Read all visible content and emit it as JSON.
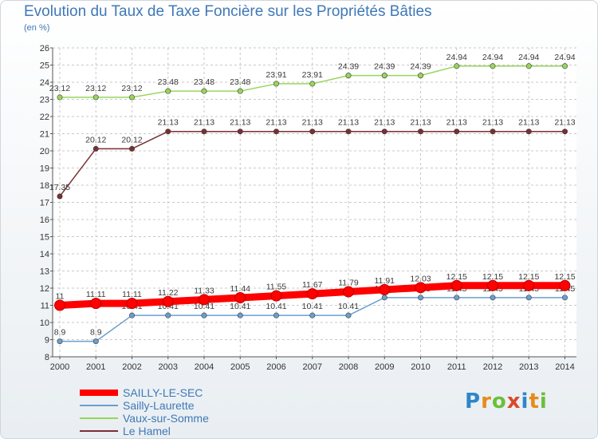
{
  "header": {
    "title": "Evolution du Taux de Taxe Foncière sur les Propriétés Bâties",
    "unit": "(en %)"
  },
  "chart_data": {
    "type": "line",
    "title": "Evolution du Taux de Taxe Foncière sur les Propriétés Bâties",
    "ylabel": "(en %)",
    "xlabel": "",
    "categories": [
      "2000",
      "2001",
      "2002",
      "2003",
      "2004",
      "2005",
      "2006",
      "2007",
      "2008",
      "2009",
      "2010",
      "2011",
      "2012",
      "2013",
      "2014"
    ],
    "ylim": [
      8,
      26
    ],
    "yticks": [
      8,
      9,
      10,
      11,
      12,
      13,
      14,
      15,
      16,
      17,
      18,
      19,
      20,
      21,
      22,
      23,
      24,
      25,
      26
    ],
    "grid": "horizontal-and-vertical-dashed",
    "series": [
      {
        "name": "SAILLY-LE-SEC",
        "color": "#ff0000",
        "style": "thick",
        "values": [
          11,
          11.11,
          11.11,
          11.22,
          11.33,
          11.44,
          11.55,
          11.67,
          11.79,
          11.91,
          12.03,
          12.15,
          12.15,
          12.15,
          12.15
        ],
        "labels": [
          "11",
          "11.11",
          "11.11",
          "11.22",
          "11.33",
          "11.44",
          "11.55",
          "11.67",
          "11.79",
          "11.91",
          "12.03",
          "12.15",
          "12.15",
          "12.15",
          "12.15"
        ]
      },
      {
        "name": "Sailly-Laurette",
        "color": "#6a9fd0",
        "style": "thin",
        "values": [
          8.9,
          8.9,
          10.41,
          10.41,
          10.41,
          10.41,
          10.41,
          10.41,
          10.41,
          11.45,
          11.45,
          11.45,
          11.45,
          11.45,
          11.45
        ],
        "labels": [
          "8.9",
          "8.9",
          "10.41",
          "10.41",
          "10.41",
          "10.41",
          "10.41",
          "10.41",
          "10.41",
          "11.45",
          "11.45",
          "11.45",
          "11.45",
          "11.45",
          "11.45"
        ]
      },
      {
        "name": "Vaux-sur-Somme",
        "color": "#97d65a",
        "style": "thin",
        "values": [
          23.12,
          23.12,
          23.12,
          23.48,
          23.48,
          23.48,
          23.91,
          23.91,
          24.39,
          24.39,
          24.39,
          24.94,
          24.94,
          24.94,
          24.94
        ],
        "labels": [
          "23.12",
          "23.12",
          "23.12",
          "23.48",
          "23.48",
          "23.48",
          "23.91",
          "23.91",
          "24.39",
          "24.39",
          "24.39",
          "24.94",
          "24.94",
          "24.94",
          "24.94"
        ]
      },
      {
        "name": "Le Hamel",
        "color": "#7a2f34",
        "style": "thin",
        "values": [
          17.35,
          20.12,
          20.12,
          21.13,
          21.13,
          21.13,
          21.13,
          21.13,
          21.13,
          21.13,
          21.13,
          21.13,
          21.13,
          21.13,
          21.13
        ],
        "labels": [
          "17.35",
          "20.12",
          "20.12",
          "21.13",
          "21.13",
          "21.13",
          "21.13",
          "21.13",
          "21.13",
          "21.13",
          "21.13",
          "21.13",
          "21.13",
          "21.13",
          "21.13"
        ]
      }
    ],
    "legend_position": "bottom-left"
  },
  "legend": {
    "items": [
      {
        "label": "SAILLY-LE-SEC",
        "color": "#ff0000"
      },
      {
        "label": "Sailly-Laurette",
        "color": "#6a9fd0"
      },
      {
        "label": "Vaux-sur-Somme",
        "color": "#97d65a"
      },
      {
        "label": "Le Hamel",
        "color": "#7a2f34"
      }
    ]
  },
  "logo": {
    "letters": [
      "P",
      "r",
      "o",
      "x",
      "i",
      "t",
      "i"
    ],
    "colors": [
      "#2e86c8",
      "#e88a1a",
      "#6bbf3a",
      "#d94a2a",
      "#2e86c8",
      "#e88a1a",
      "#6bbf3a"
    ]
  }
}
